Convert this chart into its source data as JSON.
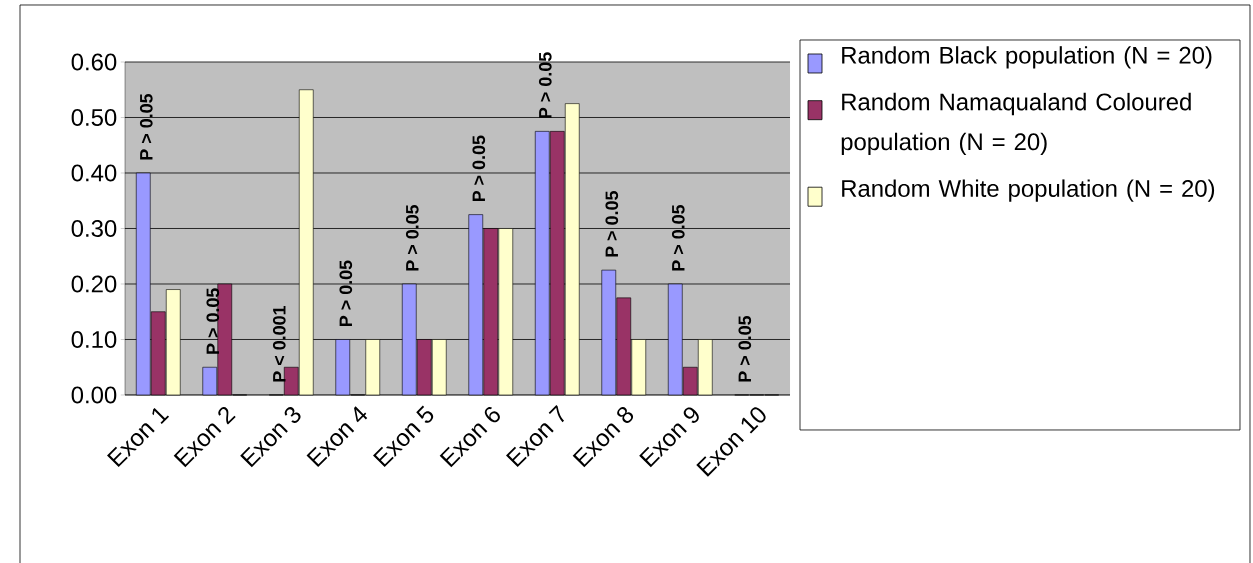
{
  "chart_data": {
    "type": "bar",
    "categories": [
      "Exon 1",
      "Exon 2",
      "Exon 3",
      "Exon 4",
      "Exon 5",
      "Exon 6",
      "Exon 7",
      "Exon 8",
      "Exon 9",
      "Exon 10"
    ],
    "series": [
      {
        "name": "Random Black population (N = 20)",
        "color": "#9999ff",
        "values": [
          0.4,
          0.05,
          0,
          0.1,
          0.2,
          0.325,
          0.475,
          0.225,
          0.2,
          0
        ]
      },
      {
        "name": "Random Namaqualand Coloured population (N = 20)",
        "color": "#993366",
        "values": [
          0.15,
          0.2,
          0.05,
          0,
          0.1,
          0.3,
          0.475,
          0.175,
          0.05,
          0
        ]
      },
      {
        "name": "Random White population (N = 20)",
        "color": "#ffffcc",
        "values": [
          0.19,
          0,
          0.55,
          0.1,
          0.1,
          0.3,
          0.525,
          0.1,
          0.1,
          0
        ]
      }
    ],
    "ylim": [
      0,
      0.6
    ],
    "yticks": [
      {
        "value": 0,
        "label": "0.00"
      },
      {
        "value": 0.1,
        "label": "0.10"
      },
      {
        "value": 0.2,
        "label": "0.20"
      },
      {
        "value": 0.3,
        "label": "0.30"
      },
      {
        "value": 0.4,
        "label": "0.40"
      },
      {
        "value": 0.5,
        "label": "0.50"
      },
      {
        "value": 0.6,
        "label": "0.60"
      }
    ],
    "grid": "y",
    "legend": "right",
    "annotations": [
      "P > 0.05",
      "P > 0.05",
      "P < 0.001",
      "P > 0.05",
      "P > 0.05",
      "P > 0.05",
      "P > 0.05",
      "P > 0.05",
      "P > 0.05",
      "P > 0.05"
    ]
  }
}
